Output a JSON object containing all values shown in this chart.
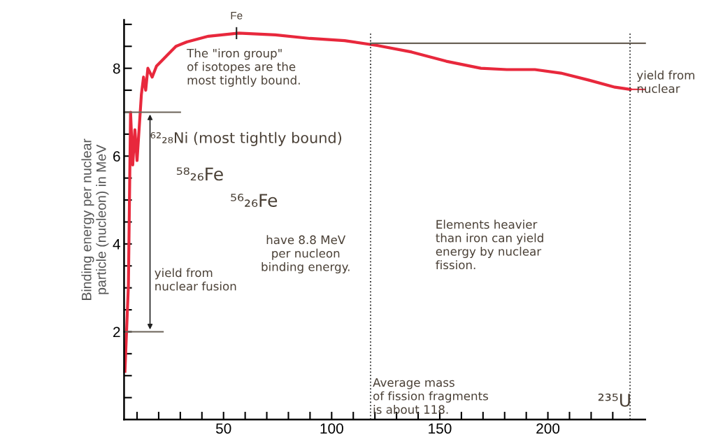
{
  "chart_data": {
    "type": "line",
    "ylabel": "Binding energy per nuclear\nparticle (nucleon) in MeV",
    "xlim": [
      4,
      245
    ],
    "ylim": [
      0,
      9.1
    ],
    "xticks": [
      {
        "value": 10,
        "label": null
      },
      {
        "value": 20,
        "label": null
      },
      {
        "value": 30,
        "label": null
      },
      {
        "value": 40,
        "label": null
      },
      50,
      {
        "value": 60,
        "label": null
      },
      {
        "value": 70,
        "label": null
      },
      {
        "value": 80,
        "label": null
      },
      {
        "value": 90,
        "label": null
      },
      100,
      {
        "value": 110,
        "label": null
      },
      {
        "value": 120,
        "label": null
      },
      {
        "value": 130,
        "label": null
      },
      {
        "value": 140,
        "label": null
      },
      150,
      {
        "value": 160,
        "label": null
      },
      {
        "value": 170,
        "label": null
      },
      {
        "value": 180,
        "label": null
      },
      {
        "value": 190,
        "label": null
      },
      200,
      {
        "value": 210,
        "label": null
      },
      {
        "value": 220,
        "label": null
      },
      {
        "value": 230,
        "label": null
      }
    ],
    "yticks": [
      {
        "value": 0.5,
        "label": null
      },
      {
        "value": 1,
        "label": null
      },
      {
        "value": 1.5,
        "label": null
      },
      2,
      {
        "value": 2.5,
        "label": null
      },
      {
        "value": 3,
        "label": null
      },
      {
        "value": 3.5,
        "label": null
      },
      4,
      {
        "value": 4.5,
        "label": null
      },
      {
        "value": 5,
        "label": null
      },
      {
        "value": 5.5,
        "label": null
      },
      6,
      {
        "value": 6.5,
        "label": null
      },
      {
        "value": 7,
        "label": null
      },
      {
        "value": 7.5,
        "label": null
      },
      8,
      {
        "value": 8.5,
        "label": null
      },
      {
        "value": 9,
        "label": null
      }
    ],
    "grid": false,
    "marker": "none",
    "line_style": "solid",
    "series": [
      {
        "color": "#e8283c",
        "x": [
          4.4,
          6,
          7,
          8,
          9,
          10,
          12,
          13,
          14,
          15,
          17,
          19,
          21,
          24,
          28,
          33,
          43,
          57,
          74,
          90,
          106,
          121,
          137,
          153,
          169,
          181,
          194,
          206,
          219,
          231,
          238
        ],
        "values": [
          1.1,
          3.05,
          7.0,
          5.8,
          6.6,
          5.9,
          7.4,
          7.8,
          7.5,
          8.0,
          7.8,
          8.05,
          8.15,
          8.3,
          8.5,
          8.6,
          8.73,
          8.8,
          8.76,
          8.68,
          8.63,
          8.52,
          8.37,
          8.16,
          8.0,
          7.97,
          7.97,
          7.89,
          7.73,
          7.57,
          7.52
        ]
      },
      {
        "color": "#6b6358",
        "x": [
          4,
          30
        ],
        "values": [
          7.0,
          7.0
        ]
      },
      {
        "color": "#6b6358",
        "x": [
          4,
          22
        ],
        "values": [
          2.0,
          2.0
        ]
      },
      {
        "color": "#6b6358",
        "x": [
          118,
          245
        ],
        "values": [
          8.57,
          8.57
        ]
      },
      {
        "color": "#e8283c",
        "x": [
          238,
          245
        ],
        "values": [
          7.52,
          7.52
        ]
      }
    ],
    "ref_lines": [
      {
        "axis": "x",
        "value": 118,
        "color": "#333333",
        "line_style": "dotted"
      },
      {
        "axis": "x",
        "value": 238,
        "color": "#333333",
        "line_style": "dotted"
      }
    ],
    "annotations": [
      {
        "text": "Fe",
        "x": 56,
        "y": 8.8
      },
      "The \"iron group\"\nof isotopes are the\nmost tightly bound.",
      "⁶²₂₈Ni (most tightly bound)",
      "⁵⁸₂₆Fe",
      "⁵⁶₂₆Fe",
      "have 8.8 MeV\nper nucleon\nbinding energy.",
      "yield from\nnuclear fusion",
      "Elements heavier\nthan iron can yield\nenergy by nuclear\nfission.",
      "Average mass\nof fission fragments\nis about 118.",
      "²³⁵U",
      "yield from\nnuclear"
    ]
  }
}
